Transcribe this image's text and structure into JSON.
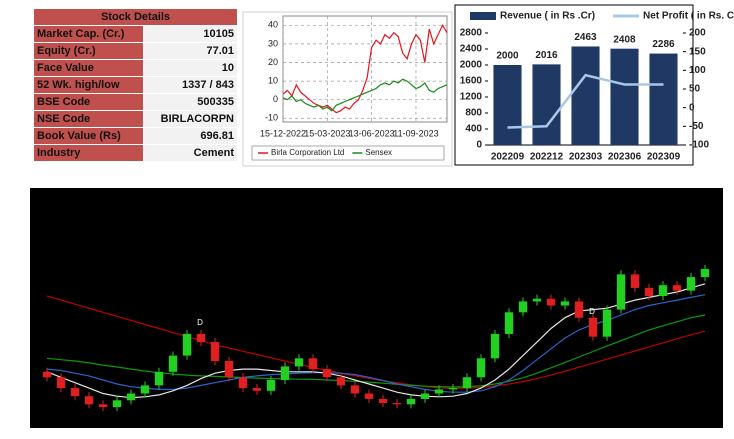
{
  "table": {
    "title": "Stock Details",
    "rows": [
      [
        "Market Cap. (Cr.)",
        "10105"
      ],
      [
        "Equity (Cr.)",
        "77.01"
      ],
      [
        "Face Value",
        "10"
      ],
      [
        "52 Wk. high/low",
        "1337 / 843"
      ],
      [
        "BSE Code",
        "500335"
      ],
      [
        "NSE Code",
        "BIRLACORPN"
      ],
      [
        "Book Value (Rs)",
        "696.81"
      ],
      [
        "Industry",
        "Cement"
      ]
    ]
  },
  "chart_data": [
    {
      "type": "line",
      "categories": [
        "15-12-2022",
        null,
        null,
        null,
        null,
        null,
        null,
        null,
        null,
        null,
        "15-03-2023",
        null,
        null,
        null,
        null,
        null,
        null,
        null,
        null,
        null,
        "13-06-2023",
        null,
        null,
        null,
        null,
        null,
        null,
        null,
        null,
        null,
        "11-09-2023",
        null,
        null,
        null,
        null,
        null,
        null,
        null
      ],
      "series": [
        {
          "name": "Birla Corporation Ltd",
          "color": "#e8141c",
          "values": [
            3,
            5,
            2,
            8,
            4,
            2,
            0,
            -2,
            -3,
            -4,
            -3,
            -5,
            -7,
            -6,
            -4,
            -5,
            -2,
            0,
            5,
            12,
            28,
            32,
            30,
            35,
            33,
            36,
            34,
            25,
            22,
            30,
            35,
            32,
            20,
            38,
            30,
            35,
            40,
            36
          ]
        },
        {
          "name": "Sensex",
          "color": "#1a8a1a",
          "values": [
            1,
            0,
            2,
            -1,
            0,
            -2,
            -3,
            -4,
            -3,
            -5,
            -4,
            -6,
            -3,
            -2,
            -1,
            0,
            1,
            2,
            3,
            4,
            5,
            6,
            8,
            9,
            8,
            10,
            9,
            11,
            10,
            8,
            6,
            7,
            9,
            5,
            4,
            6,
            7,
            8
          ]
        }
      ],
      "ylim": [
        -12,
        45
      ],
      "yticks": [
        -10,
        0,
        10,
        20,
        30,
        40
      ],
      "grid": true,
      "legend": "bottom"
    },
    {
      "type": "bar",
      "categories": [
        "202209",
        "202212",
        "202303",
        "202306",
        "202309"
      ],
      "series": [
        {
          "name": "Revenue ( in Rs .Cr)",
          "type": "bar",
          "color": "#1f3864",
          "values": [
            2000,
            2016,
            2463,
            2408,
            2286
          ]
        },
        {
          "name": "Net Profit ( in Rs. Cr.)",
          "type": "line",
          "axis": "y2",
          "color": "#a9c8e8",
          "values": [
            -53,
            -50,
            87,
            62,
            62
          ]
        }
      ],
      "ylim": [
        0,
        2800
      ],
      "yticks": [
        0,
        400,
        800,
        1200,
        1600,
        2000,
        2400,
        2800
      ],
      "y2lim": [
        -100,
        200
      ],
      "y2ticks": [
        -100,
        -50,
        0,
        50,
        100,
        150,
        200
      ],
      "legend": "top"
    },
    {
      "type": "candlestick",
      "open": [
        950,
        930,
        890,
        860,
        830,
        820,
        845,
        870,
        900,
        950,
        1010,
        1090,
        1060,
        990,
        930,
        890,
        880,
        920,
        970,
        1000,
        960,
        930,
        900,
        870,
        850,
        835,
        830,
        850,
        870,
        885,
        890,
        930,
        1000,
        1090,
        1170,
        1210,
        1220,
        1195,
        1210,
        1150,
        1080,
        1180,
        1310,
        1260,
        1230,
        1270,
        1250,
        1300
      ],
      "high": [
        965,
        945,
        905,
        875,
        845,
        860,
        885,
        915,
        965,
        1025,
        1105,
        1105,
        1075,
        1005,
        945,
        905,
        935,
        985,
        1015,
        1015,
        975,
        945,
        915,
        885,
        865,
        850,
        865,
        885,
        900,
        905,
        945,
        1015,
        1105,
        1185,
        1225,
        1235,
        1235,
        1225,
        1225,
        1165,
        1195,
        1325,
        1325,
        1275,
        1285,
        1285,
        1315,
        1345
      ],
      "low": [
        915,
        875,
        845,
        815,
        805,
        805,
        830,
        855,
        885,
        935,
        995,
        1045,
        975,
        915,
        875,
        865,
        865,
        905,
        955,
        945,
        915,
        885,
        855,
        835,
        820,
        815,
        815,
        835,
        855,
        870,
        875,
        915,
        985,
        1075,
        1155,
        1195,
        1180,
        1180,
        1135,
        1065,
        1065,
        1165,
        1245,
        1215,
        1215,
        1235,
        1235,
        1285
      ],
      "close": [
        930,
        890,
        860,
        830,
        820,
        845,
        870,
        900,
        950,
        1010,
        1090,
        1060,
        990,
        930,
        890,
        880,
        920,
        970,
        1000,
        960,
        930,
        900,
        870,
        850,
        835,
        830,
        850,
        870,
        885,
        890,
        930,
        1000,
        1090,
        1170,
        1210,
        1220,
        1195,
        1210,
        1150,
        1080,
        1180,
        1310,
        1260,
        1230,
        1270,
        1250,
        1300,
        1330
      ],
      "up_color": "#22d022",
      "down_color": "#e02020",
      "series": [
        {
          "color": "#c00000",
          "values": [
            1230,
            1215,
            1200,
            1185,
            1170,
            1155,
            1140,
            1125,
            1110,
            1095,
            1080,
            1065,
            1050,
            1038,
            1026,
            1014,
            1002,
            990,
            978,
            966,
            955,
            945,
            935,
            926,
            917,
            909,
            902,
            896,
            891,
            889,
            890,
            893,
            898,
            905,
            914,
            925,
            938,
            952,
            967,
            982,
            997,
            1012,
            1027,
            1042,
            1057,
            1072,
            1087,
            1100
          ]
        },
        {
          "color": "#0a9a0a",
          "values": [
            1000,
            995,
            990,
            983,
            975,
            968,
            960,
            953,
            947,
            942,
            938,
            935,
            933,
            931,
            929,
            927,
            925,
            924,
            923,
            922,
            920,
            918,
            915,
            912,
            908,
            904,
            900,
            897,
            895,
            894,
            895,
            898,
            905,
            915,
            928,
            945,
            965,
            985,
            1005,
            1025,
            1045,
            1065,
            1085,
            1105,
            1120,
            1135,
            1150,
            1160
          ]
        },
        {
          "color": "#2a64c8",
          "values": [
            960,
            955,
            945,
            935,
            920,
            905,
            895,
            890,
            885,
            885,
            890,
            900,
            910,
            920,
            930,
            935,
            940,
            942,
            945,
            947,
            947,
            945,
            940,
            930,
            918,
            905,
            895,
            885,
            878,
            875,
            875,
            880,
            895,
            920,
            955,
            995,
            1035,
            1075,
            1105,
            1125,
            1140,
            1160,
            1180,
            1195,
            1205,
            1215,
            1225,
            1235
          ]
        },
        {
          "color": "#e6e6e6",
          "values": [
            950,
            930,
            910,
            890,
            870,
            860,
            855,
            858,
            865,
            880,
            900,
            925,
            945,
            955,
            960,
            960,
            955,
            950,
            950,
            950,
            945,
            935,
            920,
            905,
            890,
            875,
            865,
            860,
            858,
            860,
            870,
            890,
            920,
            960,
            1010,
            1060,
            1110,
            1150,
            1175,
            1180,
            1185,
            1200,
            1215,
            1225,
            1235,
            1245,
            1260,
            1275
          ]
        }
      ],
      "ylim": [
        750,
        1400
      ],
      "annotations": [
        "D",
        "D"
      ]
    }
  ]
}
